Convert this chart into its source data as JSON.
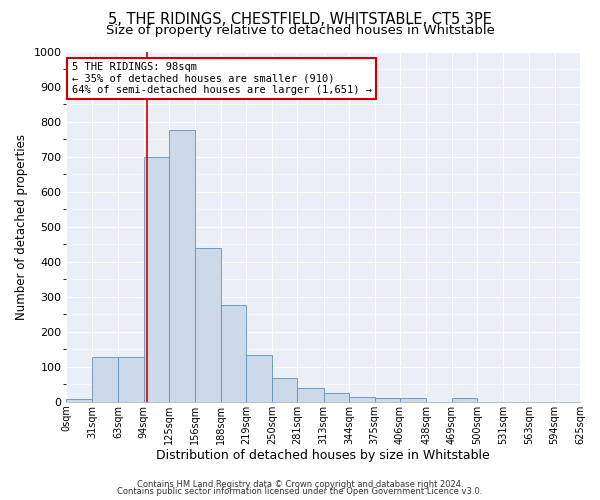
{
  "title1": "5, THE RIDINGS, CHESTFIELD, WHITSTABLE, CT5 3PE",
  "title2": "Size of property relative to detached houses in Whitstable",
  "xlabel": "Distribution of detached houses by size in Whitstable",
  "ylabel": "Number of detached properties",
  "bin_edges": [
    0,
    31,
    63,
    94,
    125,
    156,
    188,
    219,
    250,
    281,
    313,
    344,
    375,
    406,
    438,
    469,
    500,
    531,
    563,
    594,
    625
  ],
  "bar_heights": [
    8,
    128,
    128,
    700,
    775,
    440,
    275,
    133,
    68,
    40,
    25,
    15,
    10,
    10,
    0,
    10,
    0,
    0,
    0,
    0
  ],
  "bar_color": "#ccd9e8",
  "bar_edge_color": "#6090bb",
  "property_size": 98,
  "vline_color": "#cc0000",
  "annotation_line1": "5 THE RIDINGS: 98sqm",
  "annotation_line2": "← 35% of detached houses are smaller (910)",
  "annotation_line3": "64% of semi-detached houses are larger (1,651) →",
  "annotation_box_color": "#ffffff",
  "annotation_box_edge_color": "#cc0000",
  "ylim": [
    0,
    1000
  ],
  "yticks": [
    0,
    100,
    200,
    300,
    400,
    500,
    600,
    700,
    800,
    900,
    1000
  ],
  "bg_color": "#eaeff7",
  "footer1": "Contains HM Land Registry data © Crown copyright and database right 2024.",
  "footer2": "Contains public sector information licensed under the Open Government Licence v3.0.",
  "title1_fontsize": 10.5,
  "title2_fontsize": 9.5,
  "tick_labels": [
    "0sqm",
    "31sqm",
    "63sqm",
    "94sqm",
    "125sqm",
    "156sqm",
    "188sqm",
    "219sqm",
    "250sqm",
    "281sqm",
    "313sqm",
    "344sqm",
    "375sqm",
    "406sqm",
    "438sqm",
    "469sqm",
    "500sqm",
    "531sqm",
    "563sqm",
    "594sqm",
    "625sqm"
  ]
}
